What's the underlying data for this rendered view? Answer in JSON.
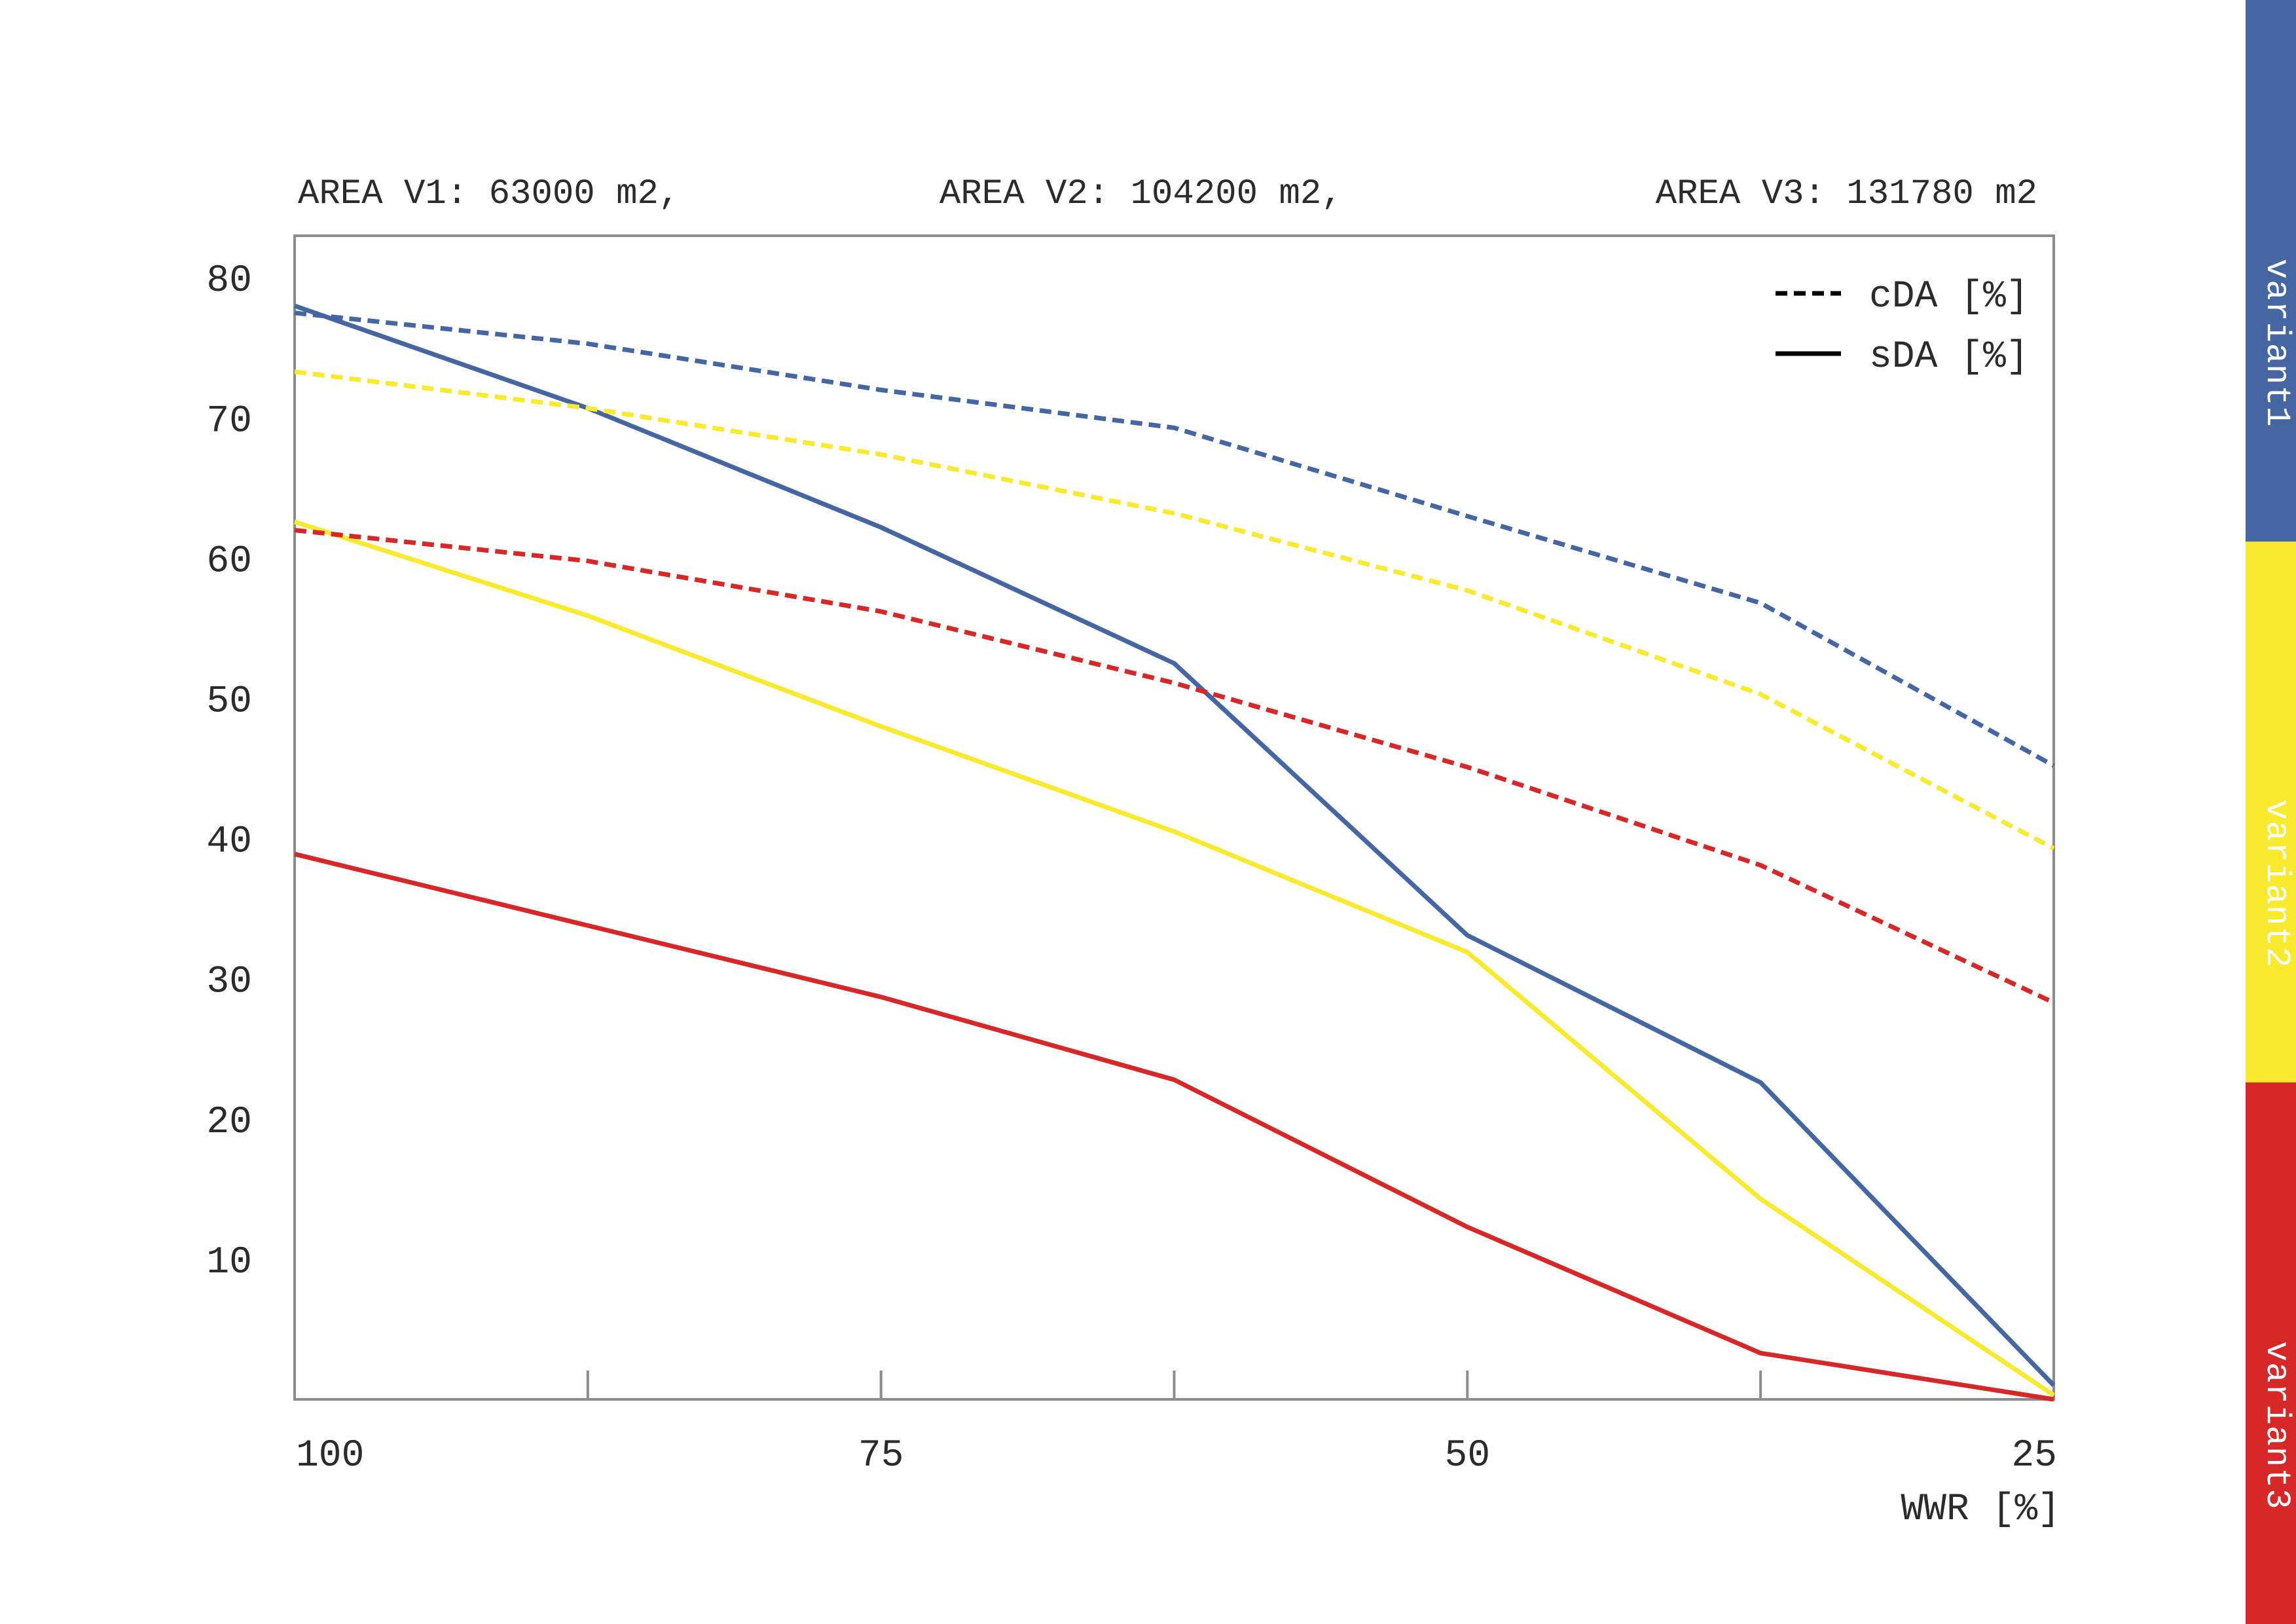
{
  "chart_data": {
    "type": "line",
    "header_labels": [
      "AREA V1: 63000 m2,",
      "AREA V2: 104200 m2,",
      "AREA V3: 131780 m2"
    ],
    "xlabel": "WWR [%]",
    "x_ticks": [
      "100",
      "75",
      "50",
      "25"
    ],
    "y_ticks": [
      "80",
      "70",
      "60",
      "50",
      "40",
      "30",
      "20",
      "10"
    ],
    "x": [
      100,
      87.5,
      75,
      62.5,
      50,
      37.5,
      25
    ],
    "xlim": [
      100,
      25
    ],
    "ylim": [
      0,
      83
    ],
    "grid": false,
    "legend_position": "top-right",
    "legend": [
      {
        "label": "cDA [%]",
        "style": "dashed"
      },
      {
        "label": "sDA [%]",
        "style": "solid"
      }
    ],
    "series": [
      {
        "variant": "variant1",
        "metric": "cDA",
        "style": "dashed",
        "color": "#4566a1",
        "values": [
          77.5,
          75.3,
          72.0,
          69.3,
          63.0,
          56.8,
          45.2
        ]
      },
      {
        "variant": "variant1",
        "metric": "sDA",
        "style": "solid",
        "color": "#4566a1",
        "values": [
          78.0,
          70.7,
          62.2,
          52.5,
          33.1,
          22.6,
          1.0
        ]
      },
      {
        "variant": "variant2",
        "metric": "cDA",
        "style": "dashed",
        "color": "#f7ea2f",
        "values": [
          73.3,
          70.7,
          67.4,
          63.2,
          57.7,
          50.3,
          39.3
        ]
      },
      {
        "variant": "variant2",
        "metric": "sDA",
        "style": "solid",
        "color": "#f7ea2f",
        "values": [
          62.6,
          55.9,
          48.0,
          40.5,
          31.9,
          14.3,
          0.3
        ]
      },
      {
        "variant": "variant3",
        "metric": "cDA",
        "style": "dashed",
        "color": "#d62828",
        "values": [
          62.0,
          59.8,
          56.2,
          51.1,
          45.1,
          38.1,
          28.3
        ]
      },
      {
        "variant": "variant3",
        "metric": "sDA",
        "style": "solid",
        "color": "#d62828",
        "values": [
          38.9,
          33.8,
          28.7,
          22.8,
          12.3,
          3.3,
          0.0
        ]
      }
    ]
  },
  "variants": [
    {
      "label": "variant1",
      "color": "#4566a1"
    },
    {
      "label": "variant2",
      "color": "#f7ea2f"
    },
    {
      "label": "variant3",
      "color": "#d62828"
    }
  ],
  "colors": {
    "axis": "#8c8c8c",
    "text": "#2b2b2b",
    "legend_line": "#000000"
  }
}
